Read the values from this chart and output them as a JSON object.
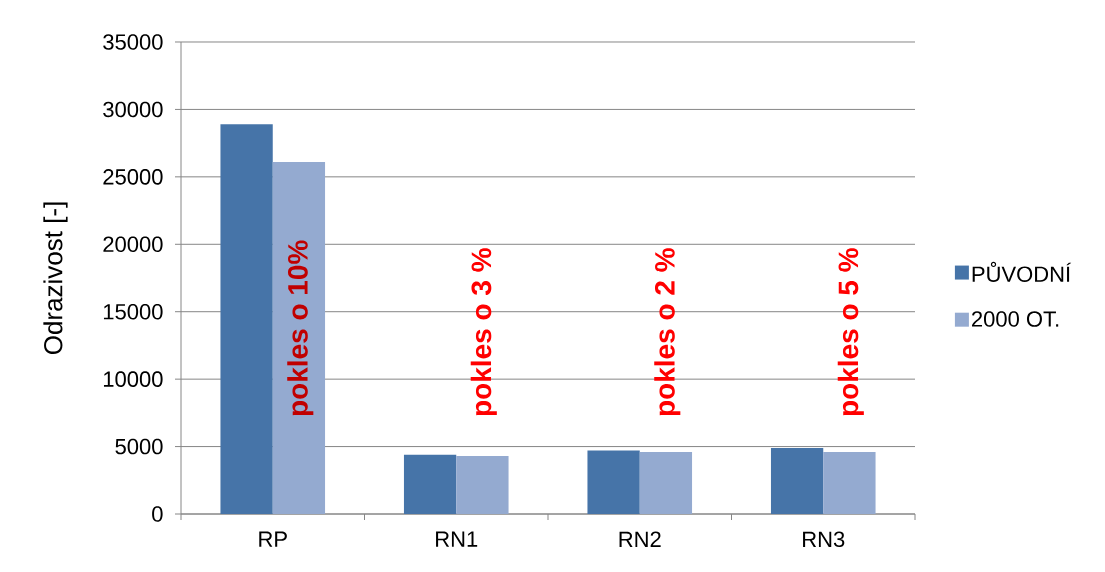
{
  "chart_data": {
    "type": "bar",
    "ylabel": "Odrazivost [-]",
    "categories": [
      "RP",
      "RN1",
      "RN2",
      "RN3"
    ],
    "series": [
      {
        "name": "PŮVODNÍ",
        "color": "#4674a8",
        "values": [
          28900,
          4400,
          4700,
          4900
        ]
      },
      {
        "name": "2000 OT.",
        "color": "#94aad0",
        "values": [
          26100,
          4300,
          4600,
          4600
        ]
      }
    ],
    "ylim": [
      0,
      35000
    ],
    "yticks": [
      0,
      5000,
      10000,
      15000,
      20000,
      25000,
      30000,
      35000
    ],
    "grid": "y",
    "legend": "right",
    "annotations": [
      "pokles o 10%",
      "pokles o 3 %",
      "pokles o 2 %",
      "pokles o 5 %"
    ]
  }
}
